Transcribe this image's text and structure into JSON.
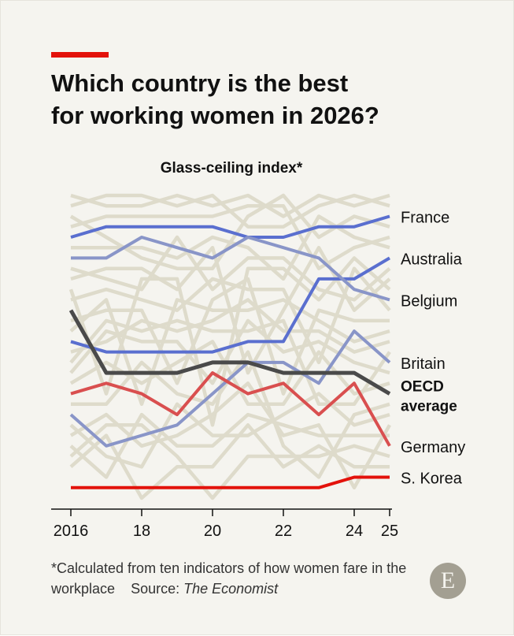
{
  "header": {
    "title_line1": "Which country is the best",
    "title_line2": "for working women in 2026?",
    "accent_color": "#e3120b"
  },
  "chart_data": {
    "type": "line",
    "chart_kind": "bump (rank) chart",
    "title": "Glass-ceiling index*",
    "x": [
      2016,
      2017,
      2018,
      2019,
      2020,
      2021,
      2022,
      2023,
      2024,
      2025
    ],
    "x_tick_labels": [
      "2016",
      "18",
      "20",
      "22",
      "24",
      "25"
    ],
    "x_tick_values": [
      2016,
      2018,
      2020,
      2022,
      2024,
      2025
    ],
    "y_axis": "rank (1 = best, top)",
    "ylim": [
      1,
      30
    ],
    "background_country_count": 21,
    "series": [
      {
        "name": "France",
        "label": "France",
        "color": "#5a6fcf",
        "width": 4,
        "rank": [
          5,
          4,
          4,
          4,
          4,
          5,
          5,
          4,
          4,
          3
        ]
      },
      {
        "name": "Australia",
        "label": "Australia",
        "color": "#5a6fcf",
        "width": 4,
        "rank": [
          15,
          16,
          16,
          16,
          16,
          15,
          15,
          9,
          9,
          7
        ]
      },
      {
        "name": "Belgium",
        "label": "Belgium",
        "color": "#8995c8",
        "width": 4,
        "rank": [
          7,
          7,
          5,
          6,
          7,
          5,
          6,
          7,
          10,
          11
        ]
      },
      {
        "name": "Britain",
        "label": "Britain",
        "color": "#8995c8",
        "width": 4,
        "rank": [
          22,
          25,
          24,
          23,
          20,
          17,
          17,
          19,
          14,
          17
        ]
      },
      {
        "name": "OECD average",
        "label_line1": "OECD",
        "label_line2": "average",
        "color": "#4a4a4a",
        "width": 5,
        "rank": [
          12,
          18,
          18,
          18,
          17,
          17,
          18,
          18,
          18,
          20
        ]
      },
      {
        "name": "Germany",
        "label": "Germany",
        "color": "#d94f4f",
        "width": 4,
        "rank": [
          20,
          19,
          20,
          22,
          18,
          20,
          19,
          22,
          19,
          25
        ]
      },
      {
        "name": "S. Korea",
        "label": "S. Korea",
        "color": "#e3120b",
        "width": 4,
        "rank": [
          29,
          29,
          29,
          29,
          29,
          29,
          29,
          29,
          28,
          28
        ]
      }
    ]
  },
  "footnote": {
    "note": "*Calculated from ten indicators of how women fare in the workplace",
    "source_prefix": "Source:",
    "source_title": "The Economist"
  },
  "logo": {
    "letter": "E",
    "color": "#a39f92"
  },
  "colors": {
    "background": "#f5f4ef",
    "background_lines": "#dedbcb"
  }
}
